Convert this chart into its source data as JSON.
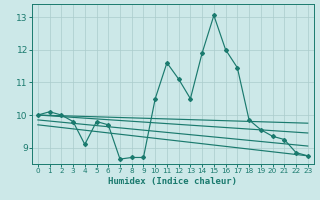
{
  "xlabel": "Humidex (Indice chaleur)",
  "background_color": "#cce8e8",
  "line_color": "#1a7a6e",
  "grid_color": "#aacccc",
  "xlim": [
    -0.5,
    23.5
  ],
  "ylim": [
    8.5,
    13.4
  ],
  "yticks": [
    9,
    10,
    11,
    12,
    13
  ],
  "xticks": [
    0,
    1,
    2,
    3,
    4,
    5,
    6,
    7,
    8,
    9,
    10,
    11,
    12,
    13,
    14,
    15,
    16,
    17,
    18,
    19,
    20,
    21,
    22,
    23
  ],
  "series": [
    [
      0,
      10.0
    ],
    [
      1,
      10.1
    ],
    [
      2,
      10.0
    ],
    [
      3,
      9.8
    ],
    [
      4,
      9.1
    ],
    [
      5,
      9.8
    ],
    [
      6,
      9.7
    ],
    [
      7,
      8.65
    ],
    [
      8,
      8.7
    ],
    [
      9,
      8.7
    ],
    [
      10,
      10.5
    ],
    [
      11,
      11.6
    ],
    [
      12,
      11.1
    ],
    [
      13,
      10.5
    ],
    [
      14,
      11.9
    ],
    [
      15,
      13.05
    ],
    [
      16,
      12.0
    ],
    [
      17,
      11.45
    ],
    [
      18,
      9.85
    ],
    [
      19,
      9.55
    ],
    [
      20,
      9.35
    ],
    [
      21,
      9.25
    ],
    [
      22,
      8.85
    ],
    [
      23,
      8.75
    ]
  ],
  "trend_lines": [
    [
      [
        0,
        10.0
      ],
      [
        23,
        9.75
      ]
    ],
    [
      [
        0,
        10.0
      ],
      [
        23,
        9.45
      ]
    ],
    [
      [
        0,
        9.85
      ],
      [
        23,
        9.05
      ]
    ],
    [
      [
        0,
        9.7
      ],
      [
        23,
        8.75
      ]
    ]
  ]
}
